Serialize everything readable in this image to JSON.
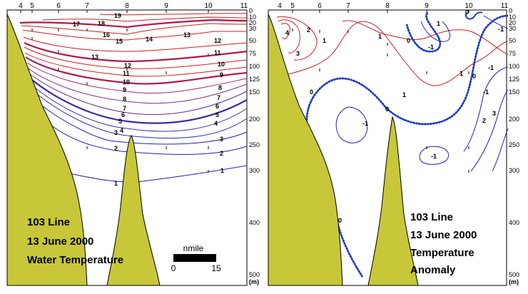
{
  "colors": {
    "land": "#c7c739",
    "red": "#cc2020",
    "darkred": "#b01a4a",
    "purple": "#6a2a9a",
    "blue": "#2020c0",
    "thickblue": "#1f3fc8"
  },
  "station_labels": [
    "4",
    "5",
    "6",
    "7",
    "8",
    "9",
    "10",
    "11"
  ],
  "depth_labels": [
    "0",
    "10",
    "20",
    "30",
    "50",
    "75",
    "100",
    "125",
    "150",
    "200",
    "250",
    "300",
    "400",
    "500"
  ],
  "depth_unit": "(m)",
  "left_panel": {
    "title": [
      "103 Line",
      "13 June 2000",
      "Water Temperature"
    ],
    "scale_label": "nmile",
    "scale_ticks": [
      "0",
      "15"
    ],
    "contour_labels": [
      "19",
      "18",
      "17",
      "16",
      "15",
      "14",
      "13",
      "13",
      "12",
      "12",
      "11",
      "11",
      "10",
      "10",
      "9",
      "9",
      "8",
      "8",
      "7",
      "7",
      "6",
      "6",
      "5",
      "5",
      "4",
      "4",
      "3",
      "3",
      "2",
      "2",
      "1",
      "1"
    ]
  },
  "right_panel": {
    "title": [
      "103 Line",
      "13 June 2000",
      "Temperature",
      "Anomaly"
    ],
    "contour_labels": [
      "4",
      "3",
      "2",
      "1",
      "1",
      "1",
      "1",
      "1",
      "0",
      "0",
      "0",
      "0",
      "0",
      "0",
      "-1",
      "-1",
      "-1",
      "-1",
      "-1",
      "-1",
      "2",
      "3"
    ]
  }
}
